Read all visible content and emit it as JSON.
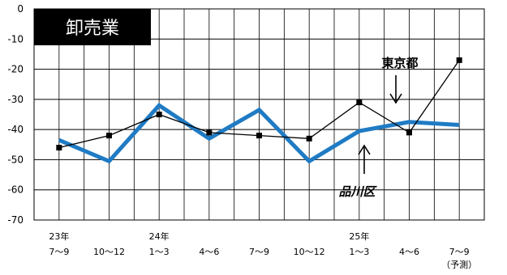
{
  "chart_data": {
    "type": "line",
    "title": "卸売業",
    "xlabel": "",
    "ylabel": "",
    "ylim": [
      -70,
      0
    ],
    "yticks": [
      "0",
      "-10",
      "-20",
      "-30",
      "-40",
      "-50",
      "-60",
      "-70"
    ],
    "categories": [
      {
        "year": "23年",
        "period": "7〜9"
      },
      {
        "year": "",
        "period": "10〜12"
      },
      {
        "year": "24年",
        "period": "1〜3"
      },
      {
        "year": "",
        "period": "4〜6"
      },
      {
        "year": "",
        "period": "7〜9"
      },
      {
        "year": "",
        "period": "10〜12"
      },
      {
        "year": "25年",
        "period": "1〜3"
      },
      {
        "year": "",
        "period": "4〜6"
      },
      {
        "year": "",
        "period": "7〜9",
        "note": "（予測）"
      }
    ],
    "series": [
      {
        "name": "東京都",
        "values": [
          -46,
          -42,
          -35,
          -41,
          -42,
          -43,
          -31,
          -41,
          -17
        ],
        "color": "#000000",
        "marker": "square"
      },
      {
        "name": "品川区",
        "values": [
          -43.5,
          -50.5,
          -32,
          -43,
          -33.5,
          -50.5,
          -40.5,
          -37.5,
          -38.5
        ],
        "color": "#1f7bc4",
        "marker": "none"
      }
    ],
    "grid": true,
    "legend": "inline-annotations"
  }
}
